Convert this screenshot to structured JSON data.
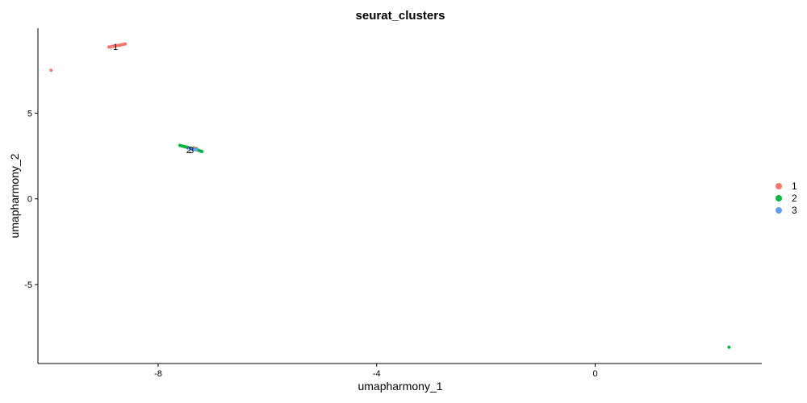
{
  "chart_data": {
    "type": "scatter",
    "title": "seurat_clusters",
    "xlabel": "umapharmony_1",
    "ylabel": "umapharmony_2",
    "xlim": [
      -10.2,
      3.05
    ],
    "ylim": [
      -9.6,
      9.95
    ],
    "xticks": [
      -8,
      -4,
      0
    ],
    "yticks": [
      -5,
      0,
      5
    ],
    "grid": false,
    "legend_position": "right",
    "series": [
      {
        "name": "1",
        "color": "#F8766D",
        "points": [
          [
            -9.96,
            7.5
          ],
          [
            -8.9,
            8.85
          ],
          [
            -8.85,
            8.88
          ],
          [
            -8.82,
            8.9
          ],
          [
            -8.78,
            8.92
          ],
          [
            -8.75,
            8.94
          ],
          [
            -8.72,
            8.96
          ],
          [
            -8.68,
            8.98
          ],
          [
            -8.65,
            9.0
          ],
          [
            -8.62,
            9.02
          ],
          [
            -8.6,
            9.03
          ],
          [
            -8.88,
            8.86
          ],
          [
            -8.8,
            8.89
          ],
          [
            -8.7,
            8.95
          ],
          [
            -7.35,
            2.98
          ],
          [
            -7.3,
            2.95
          ]
        ]
      },
      {
        "name": "2",
        "color": "#00BA38",
        "points": [
          [
            -7.6,
            3.12
          ],
          [
            -7.57,
            3.09
          ],
          [
            -7.55,
            3.07
          ],
          [
            -7.52,
            3.05
          ],
          [
            -7.5,
            3.03
          ],
          [
            -7.47,
            3.01
          ],
          [
            -7.45,
            2.99
          ],
          [
            -7.42,
            2.97
          ],
          [
            -7.4,
            2.95
          ],
          [
            -7.37,
            2.93
          ],
          [
            -7.34,
            2.9
          ],
          [
            -7.31,
            2.88
          ],
          [
            -7.28,
            2.85
          ],
          [
            -7.25,
            2.82
          ],
          [
            -7.22,
            2.79
          ],
          [
            -7.2,
            2.76
          ],
          [
            2.45,
            -8.65
          ]
        ]
      },
      {
        "name": "3",
        "color": "#619CFF",
        "points": [
          [
            -7.45,
            2.96
          ],
          [
            -7.4,
            2.93
          ],
          [
            -7.36,
            2.9
          ],
          [
            -7.33,
            2.88
          ],
          [
            -7.3,
            2.86
          ]
        ]
      }
    ],
    "cluster_labels": [
      {
        "text": "1",
        "x": -8.78,
        "y": 8.88
      },
      {
        "text": "2",
        "x": -7.44,
        "y": 2.86
      },
      {
        "text": "3",
        "x": -7.39,
        "y": 2.86
      }
    ]
  }
}
